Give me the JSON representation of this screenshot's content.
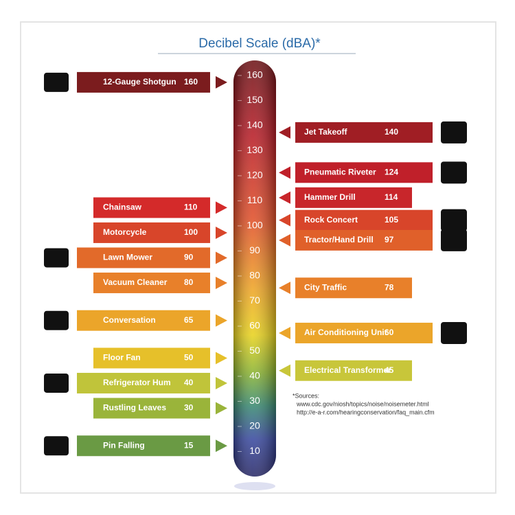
{
  "chart_data": {
    "type": "scale",
    "title": "Decibel Scale (dBA)*",
    "ylim": [
      0,
      166
    ],
    "yticks": [
      10,
      20,
      30,
      40,
      50,
      60,
      70,
      80,
      90,
      100,
      110,
      120,
      130,
      140,
      150,
      160
    ],
    "left_items": [
      {
        "label": "12-Gauge Shotgun",
        "value": 160,
        "color": "#7b1c1e"
      },
      {
        "label": "Chainsaw",
        "value": 110,
        "color": "#d42a2a"
      },
      {
        "label": "Motorcycle",
        "value": 100,
        "color": "#d8452a"
      },
      {
        "label": "Lawn Mower",
        "value": 90,
        "color": "#e26a2a"
      },
      {
        "label": "Vacuum Cleaner",
        "value": 80,
        "color": "#e8802a"
      },
      {
        "label": "Conversation",
        "value": 65,
        "color": "#eba52a"
      },
      {
        "label": "Floor Fan",
        "value": 50,
        "color": "#e6c02a"
      },
      {
        "label": "Refrigerator Hum",
        "value": 40,
        "color": "#c0c43a"
      },
      {
        "label": "Rustling Leaves",
        "value": 30,
        "color": "#9ab43a"
      },
      {
        "label": "Pin Falling",
        "value": 15,
        "color": "#6a9a44"
      }
    ],
    "right_items": [
      {
        "label": "Jet Takeoff",
        "value": 140,
        "color": "#a01e24"
      },
      {
        "label": "Pneumatic Riveter",
        "value": 124,
        "color": "#c0202a"
      },
      {
        "label": "Hammer Drill",
        "value": 114,
        "color": "#c8262b"
      },
      {
        "label": "Rock Concert",
        "value": 105,
        "color": "#d8452a"
      },
      {
        "label": "Tractor/Hand Drill",
        "value": 97,
        "color": "#e0602a"
      },
      {
        "label": "City Traffic",
        "value": 78,
        "color": "#e8802a"
      },
      {
        "label": "Air Conditioning Unit",
        "value": 60,
        "color": "#eba52a"
      },
      {
        "label": "Electrical Transformer",
        "value": 45,
        "color": "#c8c63a"
      }
    ],
    "sources": [
      "*Sources:",
      "www.cdc.gov/niosh/topics/noise/noisemeter.html",
      "http://e-a-r.com/hearingconservation/faq_main.cfm"
    ]
  }
}
